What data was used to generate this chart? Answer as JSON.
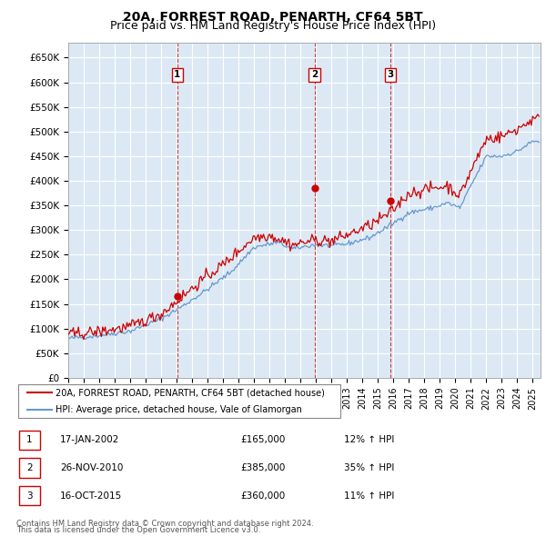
{
  "title": "20A, FORREST ROAD, PENARTH, CF64 5BT",
  "subtitle": "Price paid vs. HM Land Registry's House Price Index (HPI)",
  "ylabel_ticks": [
    "£0",
    "£50K",
    "£100K",
    "£150K",
    "£200K",
    "£250K",
    "£300K",
    "£350K",
    "£400K",
    "£450K",
    "£500K",
    "£550K",
    "£600K",
    "£650K"
  ],
  "ytick_values": [
    0,
    50000,
    100000,
    150000,
    200000,
    250000,
    300000,
    350000,
    400000,
    450000,
    500000,
    550000,
    600000,
    650000
  ],
  "ylim": [
    0,
    680000
  ],
  "xlim_start": 1995.0,
  "xlim_end": 2025.5,
  "sale_dates": [
    2002.04,
    2010.9,
    2015.79
  ],
  "sale_prices": [
    165000,
    385000,
    360000
  ],
  "sale_labels": [
    "1",
    "2",
    "3"
  ],
  "legend_line1": "20A, FORREST ROAD, PENARTH, CF64 5BT (detached house)",
  "legend_line2": "HPI: Average price, detached house, Vale of Glamorgan",
  "table_rows": [
    [
      "1",
      "17-JAN-2002",
      "£165,000",
      "12% ↑ HPI"
    ],
    [
      "2",
      "26-NOV-2010",
      "£385,000",
      "35% ↑ HPI"
    ],
    [
      "3",
      "16-OCT-2015",
      "£360,000",
      "11% ↑ HPI"
    ]
  ],
  "footnote1": "Contains HM Land Registry data © Crown copyright and database right 2024.",
  "footnote2": "This data is licensed under the Open Government Licence v3.0.",
  "red_color": "#cc0000",
  "blue_color": "#6699cc",
  "plot_bg_color": "#dce9f5",
  "grid_color": "#ffffff",
  "title_fontsize": 10,
  "subtitle_fontsize": 9
}
